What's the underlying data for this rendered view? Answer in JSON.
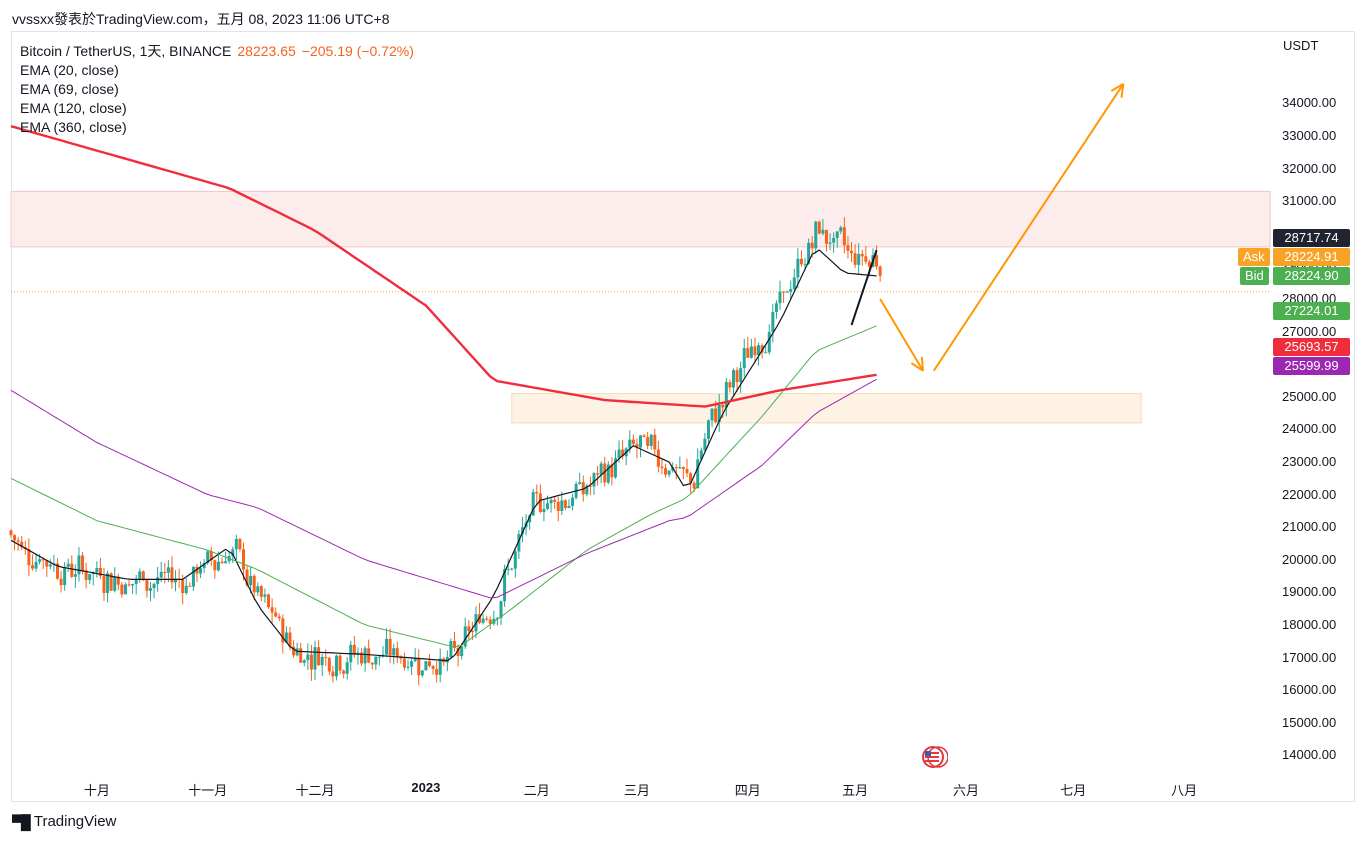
{
  "header": {
    "text": "vvssxx發表於TradingView.com，五月 08, 2023 11:06 UTC+8"
  },
  "legend": {
    "symbol": "Bitcoin / TetherUS, 1天, BINANCE",
    "price": "28223.65",
    "change": "−205.19 (−0.72%)",
    "ema_labels": [
      "EMA (20, close)",
      "EMA (69, close)",
      "EMA (120, close)",
      "EMA (360, close)"
    ]
  },
  "axis": {
    "unit": "USDT",
    "y_ticks": [
      "34000.00",
      "33000.00",
      "32000.00",
      "31000.00",
      "30000.00",
      "29000.00",
      "28000.00",
      "27000.00",
      "26000.00",
      "25000.00",
      "24000.00",
      "23000.00",
      "22000.00",
      "21000.00",
      "20000.00",
      "19000.00",
      "18000.00",
      "17000.00",
      "16000.00",
      "15000.00",
      "14000.00"
    ],
    "x_ticks": [
      "十月",
      "十一月",
      "十二月",
      "2023",
      "二月",
      "三月",
      "四月",
      "五月",
      "六月",
      "七月",
      "八月"
    ]
  },
  "badges": {
    "line_value": "28717.74",
    "ask_label": "Ask",
    "ask_value": "28224.91",
    "bid_label": "Bid",
    "bid_value": "28224.90",
    "ema69_value": "27224.01",
    "ema360_value": "25693.57",
    "ema120_value": "25599.99"
  },
  "colors": {
    "up": "#26a69a",
    "down": "#f7631b",
    "ema20": "#131722",
    "ema69": "#4caf50",
    "ema120": "#9c27b0",
    "ema360": "#ef2d3b",
    "arrow": "#ff9800",
    "ask": "#f7a327",
    "bid": "#4caf50",
    "resistance_zone": "#fdecec",
    "support_zone": "#fdf2e4",
    "dark_badge": "#1f2430"
  },
  "footer": {
    "brand": "TradingView",
    "logo_icon": "tradingview-logo-icon"
  },
  "chart_data": {
    "type": "candlestick",
    "title": "Bitcoin / TetherUS, 1天, BINANCE",
    "y_unit": "USDT",
    "ylim": [
      13800,
      35300
    ],
    "x_range": [
      "2022-09-07",
      "2023-08-25"
    ],
    "last_price": 28223.65,
    "series": [
      {
        "name": "EMA (20, close)",
        "color": "#131722",
        "points": [
          [
            "2022-09-07",
            20600
          ],
          [
            "2022-09-20",
            19800
          ],
          [
            "2022-10-10",
            19400
          ],
          [
            "2022-10-25",
            19400
          ],
          [
            "2022-11-07",
            20400
          ],
          [
            "2022-11-15",
            18600
          ],
          [
            "2022-11-25",
            17200
          ],
          [
            "2022-12-15",
            17100
          ],
          [
            "2023-01-08",
            16900
          ],
          [
            "2023-01-20",
            18900
          ],
          [
            "2023-02-01",
            21800
          ],
          [
            "2023-02-15",
            22200
          ],
          [
            "2023-02-28",
            23500
          ],
          [
            "2023-03-10",
            23000
          ],
          [
            "2023-03-15",
            22100
          ],
          [
            "2023-03-25",
            24500
          ],
          [
            "2023-04-10",
            27300
          ],
          [
            "2023-04-20",
            29600
          ],
          [
            "2023-04-28",
            28800
          ],
          [
            "2023-05-08",
            28700
          ]
        ]
      },
      {
        "name": "EMA (69, close)",
        "color": "#4caf50",
        "points": [
          [
            "2022-09-07",
            22500
          ],
          [
            "2022-10-01",
            21200
          ],
          [
            "2022-11-01",
            20300
          ],
          [
            "2022-11-15",
            19700
          ],
          [
            "2022-12-15",
            18000
          ],
          [
            "2023-01-10",
            17300
          ],
          [
            "2023-01-25",
            18500
          ],
          [
            "2023-02-15",
            20300
          ],
          [
            "2023-03-05",
            21400
          ],
          [
            "2023-03-15",
            21900
          ],
          [
            "2023-04-05",
            24400
          ],
          [
            "2023-04-20",
            26400
          ],
          [
            "2023-05-08",
            27224
          ]
        ]
      },
      {
        "name": "EMA (120, close)",
        "color": "#9c27b0",
        "points": [
          [
            "2022-09-07",
            25200
          ],
          [
            "2022-10-01",
            23600
          ],
          [
            "2022-11-01",
            22000
          ],
          [
            "2022-11-15",
            21600
          ],
          [
            "2022-12-15",
            20000
          ],
          [
            "2023-01-20",
            18800
          ],
          [
            "2023-02-15",
            20200
          ],
          [
            "2023-03-10",
            21200
          ],
          [
            "2023-03-15",
            21300
          ],
          [
            "2023-04-05",
            22900
          ],
          [
            "2023-04-20",
            24500
          ],
          [
            "2023-05-08",
            25600
          ]
        ]
      },
      {
        "name": "EMA (360, close)",
        "color": "#ef2d3b",
        "points": [
          [
            "2022-09-07",
            33300
          ],
          [
            "2022-11-07",
            31400
          ],
          [
            "2022-12-01",
            30100
          ],
          [
            "2023-01-01",
            27800
          ],
          [
            "2023-01-20",
            25500
          ],
          [
            "2023-02-20",
            24900
          ],
          [
            "2023-03-20",
            24700
          ],
          [
            "2023-04-10",
            25200
          ],
          [
            "2023-05-08",
            25694
          ]
        ]
      }
    ],
    "zones": [
      {
        "from": "2022-09-07",
        "to": "2023-08-25",
        "low": 29600,
        "high": 31300,
        "color": "#fdecec"
      },
      {
        "from": "2023-01-25",
        "to": "2023-07-20",
        "low": 24200,
        "high": 25100,
        "color": "#fdf2e4"
      }
    ],
    "drawings": [
      {
        "type": "arrow",
        "from": [
          "2023-05-08",
          28000
        ],
        "to": [
          "2023-05-20",
          25800
        ],
        "color": "#ff9800"
      },
      {
        "type": "arrow",
        "from": [
          "2023-05-23",
          25800
        ],
        "to": [
          "2023-07-15",
          34600
        ],
        "color": "#ff9800"
      }
    ]
  }
}
